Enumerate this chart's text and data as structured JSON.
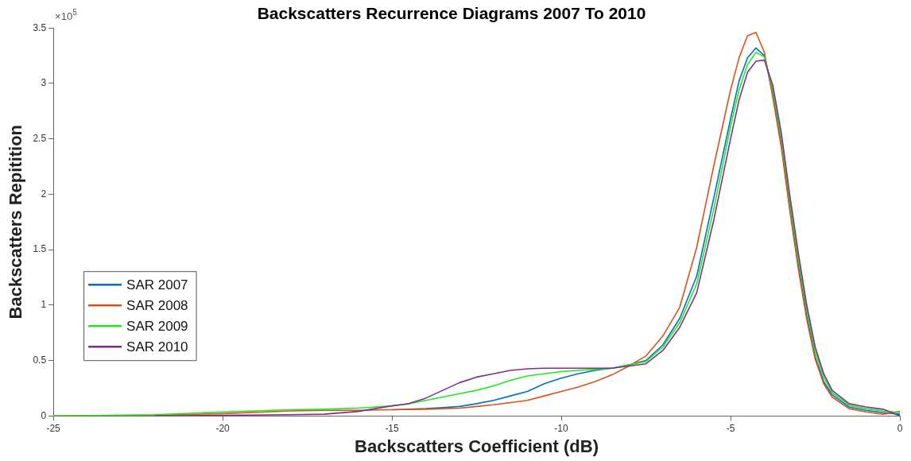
{
  "chart_data": {
    "type": "line",
    "title": "Backscatters Recurrence Diagrams 2007 To 2010",
    "xlabel": "Backscatters Coefficient (dB)",
    "ylabel": "Backscatters Repitition",
    "annotations": [
      "×10$^{5}$"
    ],
    "x": [
      -25,
      -22,
      -20,
      -18,
      -17,
      -16,
      -15,
      -14.5,
      -14,
      -13.5,
      -13,
      -12.5,
      -12,
      -11.5,
      -11,
      -10.5,
      -10,
      -9.5,
      -9,
      -8.5,
      -8,
      -7.5,
      -7,
      -6.5,
      -6,
      -5.5,
      -5,
      -4.75,
      -4.5,
      -4.25,
      -4,
      -3.75,
      -3.5,
      -3.25,
      -3,
      -2.75,
      -2.5,
      -2.25,
      -2,
      -1.5,
      -1,
      -0.5,
      0
    ],
    "series": [
      {
        "name": "SAR 2007",
        "color": "#0072bd",
        "values": [
          null,
          null,
          null,
          null,
          null,
          null,
          0.055,
          0.06,
          0.065,
          0.075,
          0.085,
          0.11,
          0.14,
          0.18,
          0.22,
          0.29,
          0.34,
          0.38,
          0.41,
          0.43,
          0.46,
          0.5,
          0.64,
          0.88,
          1.26,
          1.96,
          2.68,
          3.02,
          3.23,
          3.32,
          3.25,
          2.9,
          2.45,
          1.88,
          1.36,
          0.9,
          0.53,
          0.31,
          0.19,
          0.08,
          0.05,
          0.03,
          0.015
        ]
      },
      {
        "name": "SAR 2008",
        "color": "#d95319",
        "values": [
          0,
          0.005,
          0.02,
          0.045,
          0.05,
          0.05,
          0.055,
          0.058,
          0.06,
          0.065,
          0.07,
          0.085,
          0.1,
          0.12,
          0.14,
          0.18,
          0.22,
          0.26,
          0.31,
          0.37,
          0.45,
          0.54,
          0.72,
          0.98,
          1.52,
          2.25,
          2.94,
          3.23,
          3.43,
          3.46,
          3.28,
          2.87,
          2.42,
          1.85,
          1.33,
          0.87,
          0.51,
          0.29,
          0.17,
          0.065,
          0.035,
          0.015,
          0.04
        ]
      },
      {
        "name": "SAR 2009",
        "color": "#22e822",
        "values": [
          0,
          0.01,
          0.035,
          0.055,
          0.06,
          0.07,
          0.09,
          0.11,
          0.14,
          0.17,
          0.2,
          0.23,
          0.27,
          0.32,
          0.36,
          0.38,
          0.4,
          0.41,
          0.42,
          0.43,
          0.46,
          0.49,
          0.62,
          0.84,
          1.19,
          1.86,
          2.61,
          2.94,
          3.17,
          3.28,
          3.24,
          2.94,
          2.5,
          1.94,
          1.42,
          0.96,
          0.58,
          0.35,
          0.21,
          0.095,
          0.065,
          0.045,
          0.03
        ]
      },
      {
        "name": "SAR 2010",
        "color": "#7e2f8e",
        "values": [
          null,
          0,
          0.005,
          0.01,
          0.015,
          0.04,
          0.09,
          0.11,
          0.16,
          0.23,
          0.3,
          0.35,
          0.38,
          0.41,
          0.425,
          0.43,
          0.43,
          0.43,
          0.43,
          0.43,
          0.45,
          0.47,
          0.59,
          0.8,
          1.11,
          1.76,
          2.5,
          2.85,
          3.1,
          3.2,
          3.21,
          2.98,
          2.55,
          1.99,
          1.47,
          1.0,
          0.62,
          0.38,
          0.23,
          0.11,
          0.08,
          0.06,
          0.0
        ]
      }
    ],
    "xlim": [
      -25,
      0
    ],
    "xticks": [
      -25,
      -20,
      -15,
      -10,
      -5,
      0
    ],
    "ylim": [
      0,
      3.5
    ],
    "yticks": [
      0,
      0.5,
      1,
      1.5,
      2,
      2.5,
      3,
      3.5
    ],
    "grid": false,
    "legend": "bottom left",
    "marker": "none",
    "line_style": "solid"
  }
}
